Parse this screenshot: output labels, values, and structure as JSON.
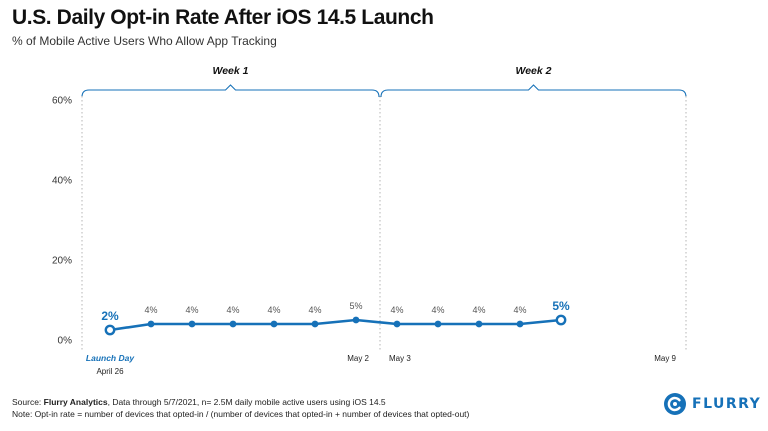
{
  "header": {
    "title": "U.S. Daily Opt-in Rate After iOS 14.5 Launch",
    "subtitle": "% of Mobile Active Users Who Allow App Tracking"
  },
  "footer": {
    "source_prefix": "Source: ",
    "source_org": "Flurry Analytics",
    "source_rest": ", Data through 5/7/2021, n= 2.5M daily mobile active users using iOS 14.5",
    "note": "Note: Opt-in rate = number of devices that opted-in / (number of devices that opted-in + number of devices that opted-out)"
  },
  "logo": {
    "text": "FLURRY",
    "color": "#1671b8"
  },
  "chart_data": {
    "type": "line",
    "title": "U.S. Daily Opt-in Rate After iOS 14.5 Launch",
    "subtitle": "% of Mobile Active Users Who Allow App Tracking",
    "ylim": [
      0,
      60
    ],
    "yticks": [
      0,
      20,
      40,
      60
    ],
    "ytick_labels": [
      "0%",
      "20%",
      "40%",
      "60%"
    ],
    "grid": false,
    "line_color": "#1671b8",
    "x_range_days": [
      0,
      13
    ],
    "series": [
      {
        "values": [
          {
            "day": 0,
            "date": "April 26",
            "value": 2.5,
            "label": "2%",
            "highlight": true
          },
          {
            "day": 1,
            "value": 4,
            "label": "4%"
          },
          {
            "day": 2,
            "value": 4,
            "label": "4%"
          },
          {
            "day": 3,
            "value": 4,
            "label": "4%"
          },
          {
            "day": 4,
            "value": 4,
            "label": "4%"
          },
          {
            "day": 5,
            "value": 4,
            "label": "4%"
          },
          {
            "day": 6,
            "value": 5,
            "label": "5%"
          },
          {
            "day": 7,
            "value": 4,
            "label": "4%"
          },
          {
            "day": 8,
            "value": 4,
            "label": "4%"
          },
          {
            "day": 9,
            "value": 4,
            "label": "4%"
          },
          {
            "day": 10,
            "value": 4,
            "label": "4%"
          },
          {
            "day": 11,
            "value": 5,
            "label": "5%",
            "highlight": true
          }
        ]
      }
    ],
    "x_tick_labels": [
      {
        "day": 0,
        "label": "Launch Day",
        "highlight": true
      },
      {
        "day": 0,
        "label": "April 26"
      },
      {
        "day": 6,
        "label": "May 2"
      },
      {
        "day": 7,
        "label": "May 3"
      },
      {
        "day": 13,
        "label": "May 9"
      }
    ],
    "weeks": [
      {
        "label": "Week 1",
        "start_day": 0,
        "end_day": 7
      },
      {
        "label": "Week 2",
        "start_day": 7,
        "end_day": 14
      }
    ]
  }
}
